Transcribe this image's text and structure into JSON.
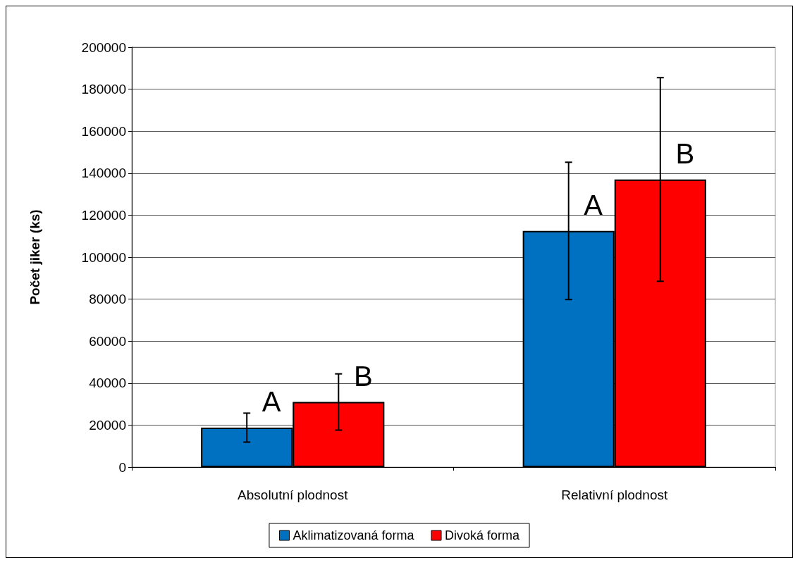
{
  "chart_data": {
    "type": "bar",
    "ylabel": "Počet jiker (ks)",
    "categories": [
      "Absolutní plodnost",
      "Relativní plodnost"
    ],
    "series": [
      {
        "name": "Aklimatizovaná forma",
        "color": "#0070c0",
        "values": [
          18800,
          112500
        ],
        "errors": [
          6900,
          32700
        ]
      },
      {
        "name": "Divoká forma",
        "color": "#ff0000",
        "values": [
          31000,
          137000
        ],
        "errors": [
          13400,
          48500
        ]
      }
    ],
    "ylim": [
      0,
      200000
    ],
    "yticks": [
      0,
      20000,
      40000,
      60000,
      80000,
      100000,
      120000,
      140000,
      160000,
      180000,
      200000
    ],
    "grid": "y",
    "legend": "bottom",
    "annotations": [
      "A",
      "B",
      "A",
      "B"
    ]
  }
}
